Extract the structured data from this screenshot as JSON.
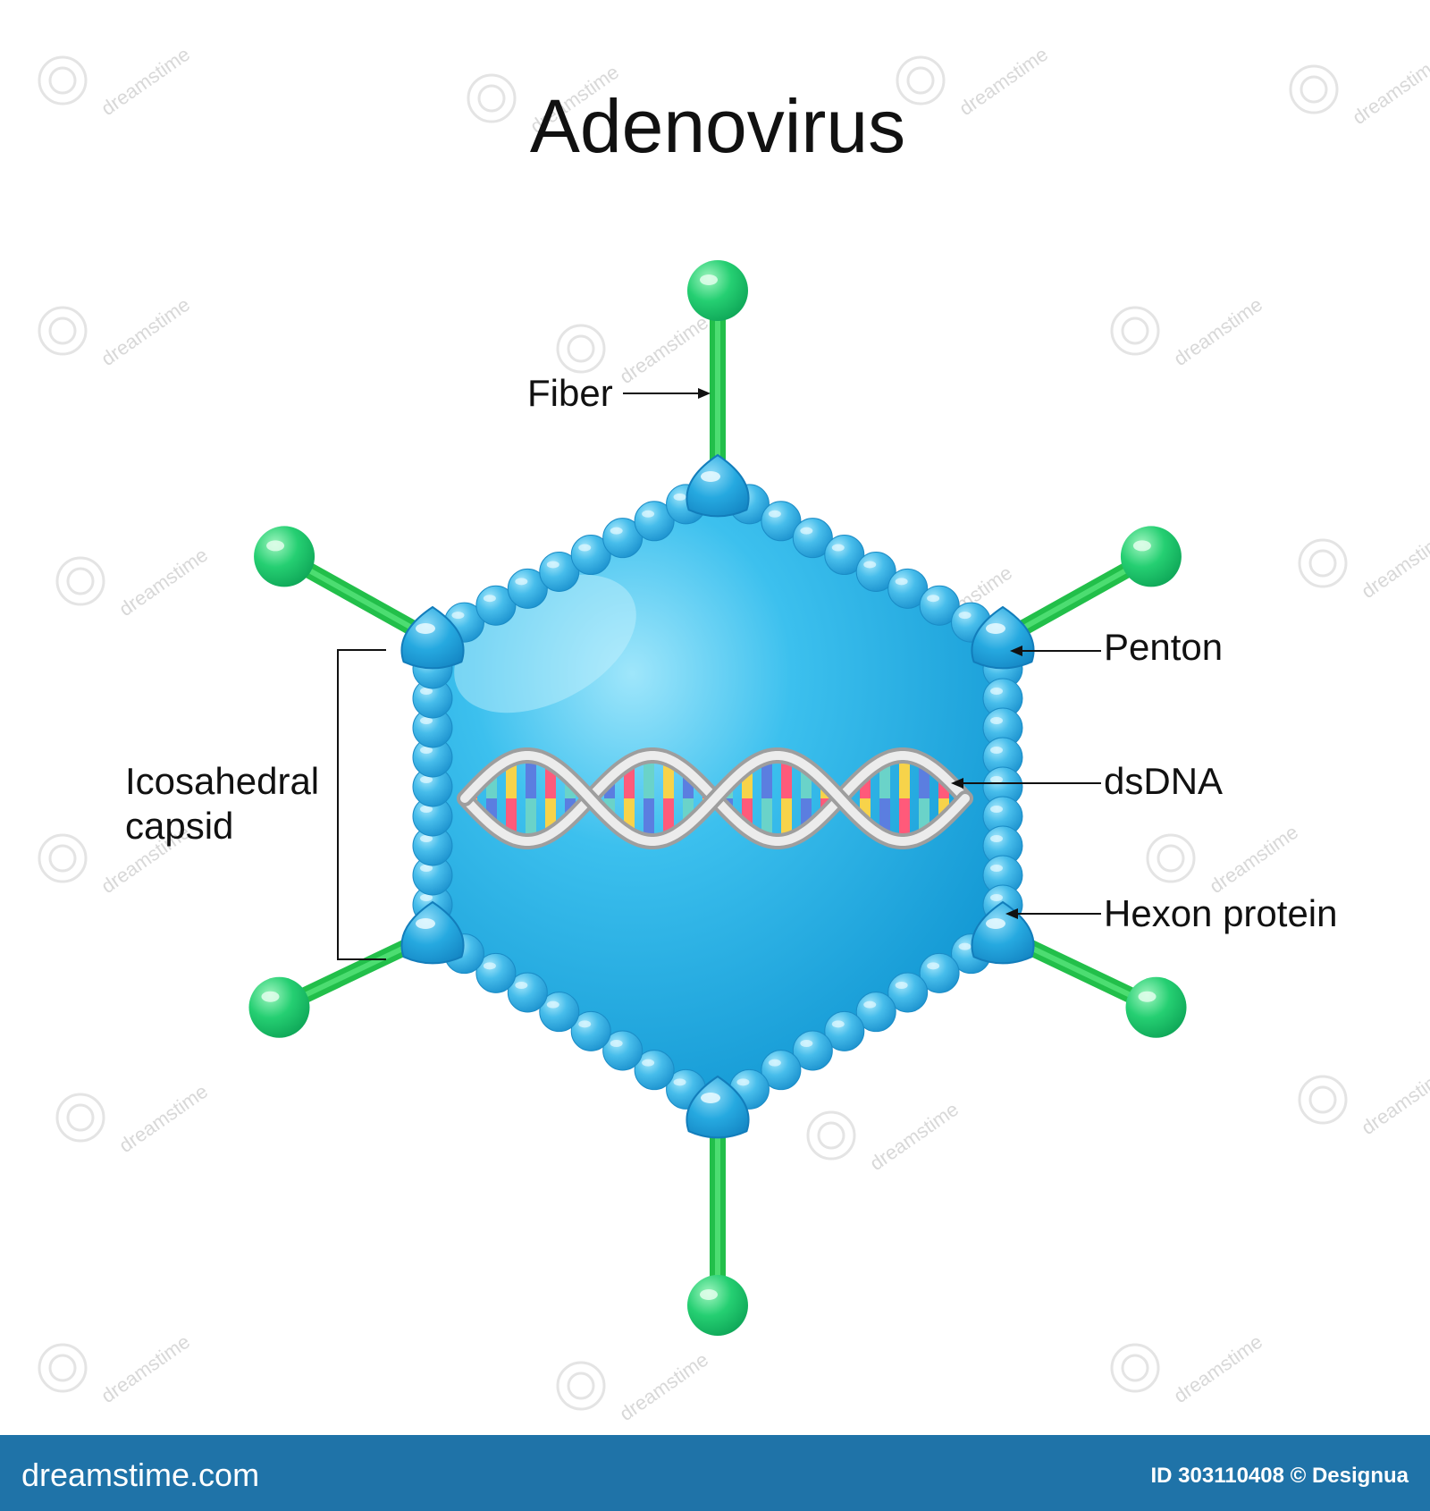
{
  "title": "Adenovirus",
  "labels": {
    "fiber": "Fiber",
    "penton": "Penton",
    "dsdna": "dsDNA",
    "hexon": "Hexon protein",
    "capsid_line1": "Icosahedral",
    "capsid_line2": "capsid"
  },
  "watermark": "dreamstime",
  "footer": {
    "brand": "dreamstime.com",
    "credit": "ID 303110408 © Designua"
  },
  "colors": {
    "capsid_fill": "#1aa6df",
    "capsid_light": "#7fdcf7",
    "hexon": "#3fb8ea",
    "penton": "#22a5de",
    "fiber": "#27d351",
    "knob": "#1ec76a",
    "footer_bg": "#1f73a8",
    "dna_backbone": "#c9c9c9",
    "base_colors": [
      "#ff5a7a",
      "#6ad3c9",
      "#f7d34a",
      "#5b7ee0"
    ]
  }
}
